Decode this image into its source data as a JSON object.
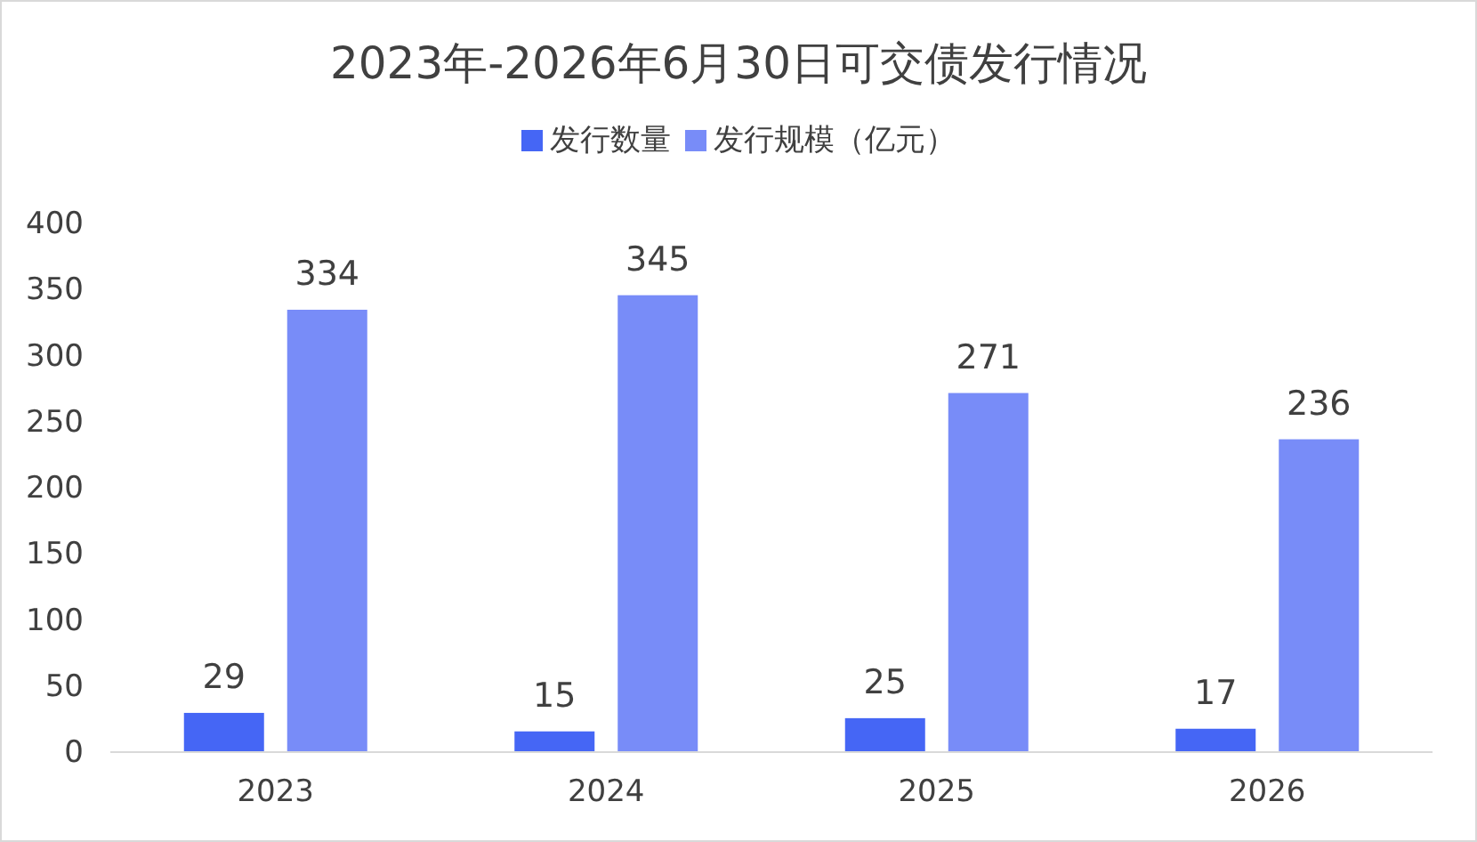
{
  "chart_data": {
    "type": "bar",
    "title": "2023年-2026年6月30日可交债发行情况",
    "categories": [
      "2023",
      "2024",
      "2025",
      "2026"
    ],
    "series": [
      {
        "name": "发行数量",
        "color": "#4566f5",
        "values": [
          29,
          15,
          25,
          17
        ]
      },
      {
        "name": "发行规模（亿元）",
        "color": "#788cf8",
        "values": [
          334,
          345,
          271,
          236
        ]
      }
    ],
    "ylim": [
      0,
      400
    ],
    "yticks": [
      0,
      50,
      100,
      150,
      200,
      250,
      300,
      350,
      400
    ],
    "data_labels": true,
    "legend": "top",
    "grid": false
  }
}
